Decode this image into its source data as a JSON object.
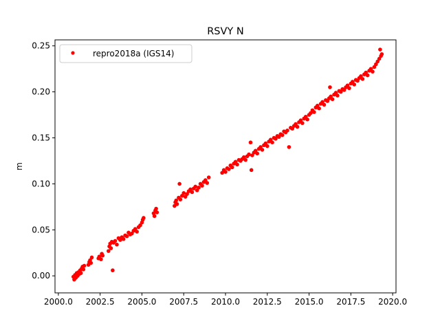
{
  "chart_data": {
    "type": "scatter",
    "title": "RSVY N",
    "xlabel": "",
    "ylabel": "m",
    "xlim": [
      1999.8,
      2020.2
    ],
    "ylim": [
      -0.0185,
      0.2565
    ],
    "xticks": [
      2000.0,
      2002.5,
      2005.0,
      2007.5,
      2010.0,
      2012.5,
      2015.0,
      2017.5,
      2020.0
    ],
    "xtick_labels": [
      "2000.0",
      "2002.5",
      "2005.0",
      "2007.5",
      "2010.0",
      "2012.5",
      "2015.0",
      "2017.5",
      "2020.0"
    ],
    "yticks": [
      0.0,
      0.05,
      0.1,
      0.15,
      0.2,
      0.25
    ],
    "ytick_labels": [
      "0.00",
      "0.05",
      "0.10",
      "0.15",
      "0.20",
      "0.25"
    ],
    "grid": false,
    "legend_position": "top-left",
    "series": [
      {
        "name": "repro2018a (IGS14)",
        "color": "#ff0000",
        "marker": "circle",
        "points": [
          [
            2000.9,
            -0.001
          ],
          [
            2000.95,
            -0.004
          ],
          [
            2001.0,
            0.001
          ],
          [
            2001.05,
            -0.002
          ],
          [
            2001.1,
            0.003
          ],
          [
            2001.15,
            0.0
          ],
          [
            2001.2,
            0.004
          ],
          [
            2001.25,
            0.002
          ],
          [
            2001.3,
            0.006
          ],
          [
            2001.35,
            0.003
          ],
          [
            2001.4,
            0.008
          ],
          [
            2001.45,
            0.01
          ],
          [
            2001.5,
            0.007
          ],
          [
            2001.55,
            0.011
          ],
          [
            2001.8,
            0.012
          ],
          [
            2001.85,
            0.015
          ],
          [
            2001.9,
            0.017
          ],
          [
            2001.95,
            0.014
          ],
          [
            2002.0,
            0.02
          ],
          [
            2002.4,
            0.019
          ],
          [
            2002.45,
            0.021
          ],
          [
            2002.55,
            0.018
          ],
          [
            2002.6,
            0.024
          ],
          [
            2002.65,
            0.022
          ],
          [
            2003.0,
            0.027
          ],
          [
            2003.05,
            0.032
          ],
          [
            2003.1,
            0.035
          ],
          [
            2003.15,
            0.03
          ],
          [
            2003.2,
            0.037
          ],
          [
            2003.25,
            0.006
          ],
          [
            2003.3,
            0.036
          ],
          [
            2003.4,
            0.038
          ],
          [
            2003.5,
            0.034
          ],
          [
            2003.6,
            0.041
          ],
          [
            2003.7,
            0.039
          ],
          [
            2003.8,
            0.042
          ],
          [
            2003.9,
            0.04
          ],
          [
            2004.0,
            0.044
          ],
          [
            2004.1,
            0.043
          ],
          [
            2004.2,
            0.047
          ],
          [
            2004.3,
            0.045
          ],
          [
            2004.4,
            0.046
          ],
          [
            2004.5,
            0.049
          ],
          [
            2004.6,
            0.051
          ],
          [
            2004.7,
            0.048
          ],
          [
            2004.8,
            0.053
          ],
          [
            2004.9,
            0.055
          ],
          [
            2005.0,
            0.058
          ],
          [
            2005.05,
            0.061
          ],
          [
            2005.1,
            0.063
          ],
          [
            2005.7,
            0.068
          ],
          [
            2005.75,
            0.065
          ],
          [
            2005.8,
            0.071
          ],
          [
            2005.85,
            0.073
          ],
          [
            2005.9,
            0.069
          ],
          [
            2006.95,
            0.076
          ],
          [
            2007.0,
            0.08
          ],
          [
            2007.05,
            0.082
          ],
          [
            2007.1,
            0.078
          ],
          [
            2007.2,
            0.085
          ],
          [
            2007.25,
            0.1
          ],
          [
            2007.3,
            0.083
          ],
          [
            2007.4,
            0.087
          ],
          [
            2007.5,
            0.09
          ],
          [
            2007.6,
            0.086
          ],
          [
            2007.7,
            0.089
          ],
          [
            2007.8,
            0.092
          ],
          [
            2007.9,
            0.094
          ],
          [
            2008.0,
            0.091
          ],
          [
            2008.1,
            0.095
          ],
          [
            2008.2,
            0.097
          ],
          [
            2008.3,
            0.093
          ],
          [
            2008.4,
            0.096
          ],
          [
            2008.5,
            0.1
          ],
          [
            2008.6,
            0.098
          ],
          [
            2008.7,
            0.102
          ],
          [
            2008.8,
            0.104
          ],
          [
            2008.9,
            0.101
          ],
          [
            2009.0,
            0.107
          ],
          [
            2009.8,
            0.112
          ],
          [
            2009.9,
            0.115
          ],
          [
            2010.0,
            0.113
          ],
          [
            2010.1,
            0.117
          ],
          [
            2010.2,
            0.116
          ],
          [
            2010.3,
            0.12
          ],
          [
            2010.4,
            0.118
          ],
          [
            2010.5,
            0.122
          ],
          [
            2010.6,
            0.124
          ],
          [
            2010.7,
            0.121
          ],
          [
            2010.8,
            0.126
          ],
          [
            2010.9,
            0.125
          ],
          [
            2011.0,
            0.127
          ],
          [
            2011.1,
            0.129
          ],
          [
            2011.2,
            0.126
          ],
          [
            2011.3,
            0.13
          ],
          [
            2011.4,
            0.132
          ],
          [
            2011.5,
            0.145
          ],
          [
            2011.55,
            0.115
          ],
          [
            2011.6,
            0.131
          ],
          [
            2011.7,
            0.134
          ],
          [
            2011.8,
            0.136
          ],
          [
            2011.9,
            0.133
          ],
          [
            2012.0,
            0.138
          ],
          [
            2012.1,
            0.14
          ],
          [
            2012.2,
            0.137
          ],
          [
            2012.3,
            0.142
          ],
          [
            2012.4,
            0.144
          ],
          [
            2012.5,
            0.141
          ],
          [
            2012.6,
            0.146
          ],
          [
            2012.7,
            0.148
          ],
          [
            2012.8,
            0.145
          ],
          [
            2012.9,
            0.15
          ],
          [
            2013.0,
            0.149
          ],
          [
            2013.1,
            0.152
          ],
          [
            2013.2,
            0.151
          ],
          [
            2013.3,
            0.154
          ],
          [
            2013.4,
            0.153
          ],
          [
            2013.5,
            0.157
          ],
          [
            2013.6,
            0.156
          ],
          [
            2013.7,
            0.158
          ],
          [
            2013.8,
            0.14
          ],
          [
            2013.9,
            0.161
          ],
          [
            2014.0,
            0.16
          ],
          [
            2014.1,
            0.163
          ],
          [
            2014.2,
            0.165
          ],
          [
            2014.3,
            0.162
          ],
          [
            2014.4,
            0.167
          ],
          [
            2014.5,
            0.169
          ],
          [
            2014.6,
            0.166
          ],
          [
            2014.7,
            0.171
          ],
          [
            2014.8,
            0.173
          ],
          [
            2014.9,
            0.17
          ],
          [
            2015.0,
            0.175
          ],
          [
            2015.1,
            0.177
          ],
          [
            2015.2,
            0.18
          ],
          [
            2015.3,
            0.178
          ],
          [
            2015.4,
            0.183
          ],
          [
            2015.5,
            0.185
          ],
          [
            2015.6,
            0.182
          ],
          [
            2015.7,
            0.187
          ],
          [
            2015.8,
            0.189
          ],
          [
            2015.9,
            0.186
          ],
          [
            2016.0,
            0.191
          ],
          [
            2016.1,
            0.19
          ],
          [
            2016.2,
            0.193
          ],
          [
            2016.25,
            0.205
          ],
          [
            2016.3,
            0.195
          ],
          [
            2016.4,
            0.192
          ],
          [
            2016.5,
            0.197
          ],
          [
            2016.6,
            0.199
          ],
          [
            2016.7,
            0.196
          ],
          [
            2016.8,
            0.201
          ],
          [
            2016.9,
            0.2
          ],
          [
            2017.0,
            0.203
          ],
          [
            2017.1,
            0.202
          ],
          [
            2017.2,
            0.205
          ],
          [
            2017.3,
            0.207
          ],
          [
            2017.4,
            0.204
          ],
          [
            2017.5,
            0.209
          ],
          [
            2017.6,
            0.211
          ],
          [
            2017.7,
            0.208
          ],
          [
            2017.8,
            0.213
          ],
          [
            2017.9,
            0.212
          ],
          [
            2018.0,
            0.215
          ],
          [
            2018.1,
            0.217
          ],
          [
            2018.2,
            0.214
          ],
          [
            2018.3,
            0.219
          ],
          [
            2018.4,
            0.221
          ],
          [
            2018.5,
            0.218
          ],
          [
            2018.6,
            0.223
          ],
          [
            2018.7,
            0.225
          ],
          [
            2018.8,
            0.222
          ],
          [
            2018.9,
            0.227
          ],
          [
            2019.0,
            0.23
          ],
          [
            2019.1,
            0.233
          ],
          [
            2019.2,
            0.236
          ],
          [
            2019.25,
            0.246
          ],
          [
            2019.3,
            0.239
          ],
          [
            2019.35,
            0.241
          ]
        ]
      }
    ]
  }
}
